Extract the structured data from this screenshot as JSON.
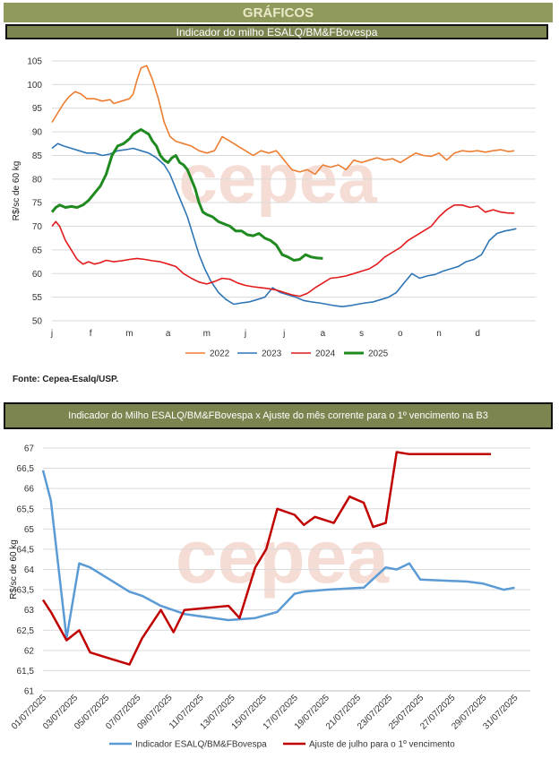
{
  "header": {
    "section_title": "GRÁFICOS"
  },
  "chart1_header": "Indicador do milho ESALQ/BM&FBovespa",
  "chart2_header": "Indicador do Milho ESALQ/BM&FBovespa x Ajuste do mês corrente para o 1º vencimento na B3",
  "source": "Fonte: Cepea-Esalq/USP.",
  "watermark": "cepea",
  "chart_data": [
    {
      "type": "line",
      "title": "Indicador do milho ESALQ/BM&FBovespa",
      "ylabel": "R$/sc de 60 kg",
      "xlabel": "",
      "ylim": [
        50,
        105
      ],
      "yticks": [
        50,
        55,
        60,
        65,
        70,
        75,
        80,
        85,
        90,
        95,
        100,
        105
      ],
      "x_tick_labels": [
        "j",
        "f",
        "m",
        "a",
        "m",
        "j",
        "j",
        "a",
        "s",
        "o",
        "n",
        "d"
      ],
      "x_unit": "month index (0 = Jan 1)",
      "grid": true,
      "legend_position": "bottom",
      "series": [
        {
          "name": "2022",
          "color": "#ed7d31",
          "width": 1.6,
          "x": [
            0,
            0.15,
            0.3,
            0.45,
            0.6,
            0.75,
            0.9,
            1.1,
            1.3,
            1.5,
            1.6,
            1.8,
            2.0,
            2.1,
            2.2,
            2.3,
            2.45,
            2.6,
            2.75,
            2.9,
            3.05,
            3.2,
            3.4,
            3.6,
            3.8,
            4.0,
            4.2,
            4.4,
            4.6,
            4.8,
            5.0,
            5.2,
            5.4,
            5.6,
            5.8,
            6.0,
            6.2,
            6.4,
            6.6,
            6.8,
            7.0,
            7.2,
            7.4,
            7.6,
            7.8,
            8.0,
            8.2,
            8.4,
            8.6,
            8.8,
            9.0,
            9.2,
            9.4,
            9.6,
            9.8,
            10.0,
            10.2,
            10.4,
            10.6,
            10.8,
            11.0,
            11.2,
            11.4,
            11.6,
            11.8,
            11.95
          ],
          "y": [
            92,
            94,
            96,
            97.5,
            98.5,
            98,
            97,
            97,
            96.5,
            96.8,
            96,
            96.5,
            97,
            98,
            101,
            103.5,
            104,
            101,
            97,
            92,
            89,
            88,
            87.5,
            87,
            86,
            85.5,
            86,
            89,
            88,
            87,
            86,
            85,
            86,
            85.5,
            86,
            84,
            82,
            81.5,
            82,
            81,
            83,
            82.5,
            83,
            82,
            84,
            83.5,
            84,
            84.5,
            84,
            84.3,
            83.5,
            84.5,
            85.5,
            85,
            84.8,
            85.5,
            84,
            85.5,
            86,
            85.8,
            86,
            85.7,
            86,
            86.2,
            85.8,
            86
          ]
        },
        {
          "name": "2023",
          "color": "#2e75b6",
          "width": 1.6,
          "x": [
            0,
            0.15,
            0.3,
            0.5,
            0.7,
            0.9,
            1.1,
            1.3,
            1.5,
            1.7,
            1.9,
            2.1,
            2.3,
            2.5,
            2.7,
            2.9,
            3.05,
            3.2,
            3.35,
            3.5,
            3.65,
            3.8,
            3.95,
            4.1,
            4.3,
            4.5,
            4.7,
            4.9,
            5.1,
            5.3,
            5.5,
            5.7,
            5.9,
            6.1,
            6.3,
            6.5,
            6.7,
            6.9,
            7.1,
            7.3,
            7.5,
            7.7,
            7.9,
            8.1,
            8.3,
            8.5,
            8.7,
            8.9,
            9.1,
            9.3,
            9.5,
            9.7,
            9.9,
            10.1,
            10.3,
            10.5,
            10.7,
            10.9,
            11.1,
            11.3,
            11.5,
            11.7,
            11.9,
            12.0
          ],
          "y": [
            86.5,
            87.5,
            87,
            86.5,
            86,
            85.5,
            85.5,
            85,
            85.3,
            86,
            86.2,
            86.5,
            86,
            85.5,
            84.5,
            83,
            81,
            78,
            75,
            72,
            68,
            64,
            61,
            58.5,
            56,
            54.5,
            53.5,
            53.8,
            54,
            54.5,
            55,
            57,
            56,
            55.5,
            55,
            54.3,
            54,
            53.8,
            53.5,
            53.2,
            53,
            53.2,
            53.5,
            53.8,
            54,
            54.5,
            55,
            56,
            58,
            60,
            59,
            59.5,
            59.8,
            60.5,
            61,
            61.5,
            62.5,
            63,
            64,
            67,
            68.5,
            69,
            69.3,
            69.5
          ]
        },
        {
          "name": "2024",
          "color": "#e31a1c",
          "width": 1.6,
          "x": [
            0,
            0.1,
            0.2,
            0.35,
            0.5,
            0.65,
            0.8,
            0.95,
            1.1,
            1.25,
            1.4,
            1.6,
            1.8,
            2.0,
            2.2,
            2.4,
            2.6,
            2.8,
            3.0,
            3.2,
            3.4,
            3.6,
            3.8,
            4.0,
            4.2,
            4.4,
            4.6,
            4.8,
            5.0,
            5.2,
            5.4,
            5.6,
            5.8,
            6.0,
            6.2,
            6.4,
            6.6,
            6.8,
            7.0,
            7.2,
            7.4,
            7.6,
            7.8,
            8.0,
            8.2,
            8.4,
            8.6,
            8.8,
            9.0,
            9.2,
            9.4,
            9.6,
            9.8,
            10.0,
            10.2,
            10.4,
            10.6,
            10.8,
            11.0,
            11.2,
            11.4,
            11.6,
            11.8,
            11.95
          ],
          "y": [
            70,
            71,
            70,
            67,
            65,
            63,
            62,
            62.5,
            62,
            62.3,
            62.8,
            62.5,
            62.7,
            63,
            63.2,
            63,
            62.7,
            62.5,
            62,
            61.5,
            60,
            59,
            58.2,
            57.8,
            58.3,
            59,
            58.8,
            58,
            57.5,
            57.2,
            57,
            56.8,
            56.5,
            56,
            55.5,
            55.2,
            55.8,
            57,
            58,
            59,
            59.2,
            59.5,
            60,
            60.5,
            61,
            62,
            63.5,
            64.5,
            65.5,
            67,
            68,
            69,
            70,
            72,
            73.5,
            74.5,
            74.5,
            74,
            74.3,
            73,
            73.5,
            73,
            72.8,
            72.8
          ]
        },
        {
          "name": "2025",
          "color": "#1f8a1f",
          "width": 3,
          "x": [
            0,
            0.1,
            0.2,
            0.35,
            0.5,
            0.65,
            0.8,
            0.95,
            1.1,
            1.25,
            1.4,
            1.55,
            1.7,
            1.85,
            2.0,
            2.1,
            2.2,
            2.3,
            2.4,
            2.5,
            2.6,
            2.7,
            2.8,
            2.9,
            3.0,
            3.1,
            3.2,
            3.3,
            3.4,
            3.5,
            3.6,
            3.7,
            3.8,
            3.9,
            4.0,
            4.15,
            4.3,
            4.45,
            4.6,
            4.75,
            4.9,
            5.05,
            5.2,
            5.35,
            5.5,
            5.65,
            5.8,
            5.95,
            6.1,
            6.25,
            6.4,
            6.55,
            6.7,
            6.85,
            7.0
          ],
          "y": [
            73,
            74,
            74.5,
            74,
            74.2,
            74,
            74.5,
            75.5,
            77,
            78.5,
            81,
            85,
            87,
            87.5,
            88.5,
            89.5,
            90,
            90.5,
            90,
            89.5,
            88,
            87,
            85,
            84,
            83.5,
            84.5,
            85,
            83.5,
            83,
            82,
            80,
            78,
            75,
            73,
            72.5,
            72,
            71,
            70.5,
            70,
            69,
            69,
            68.2,
            68,
            68.5,
            67.5,
            67,
            66,
            64,
            63.5,
            62.8,
            63,
            64,
            63.5,
            63.3,
            63.2
          ]
        }
      ]
    },
    {
      "type": "line",
      "title": "Indicador do Milho ESALQ/BM&FBovespa x Ajuste do mês corrente para o 1º vencimento na B3",
      "ylabel": "R$/sc de 60 kg",
      "xlabel": "",
      "ylim": [
        61,
        67
      ],
      "yticks": [
        61,
        61.5,
        62,
        62.5,
        63,
        63.5,
        64,
        64.5,
        65,
        65.5,
        66,
        66.5,
        67
      ],
      "ytick_labels": [
        "61",
        "61,5",
        "62",
        "62,5",
        "63",
        "63,5",
        "64",
        "64,5",
        "65",
        "65,5",
        "66",
        "66,5",
        "67"
      ],
      "x_tick_labels": [
        "01/07/2025",
        "03/07/2025",
        "05/07/2025",
        "07/07/2025",
        "09/07/2025",
        "11/07/2025",
        "13/07/2025",
        "15/07/2025",
        "17/07/2025",
        "19/07/2025",
        "21/07/2025",
        "23/07/2025",
        "25/07/2025",
        "27/07/2025",
        "29/07/2025",
        "31/07/2025"
      ],
      "x_unit": "day of July 2025",
      "grid": true,
      "legend_position": "bottom",
      "series": [
        {
          "name": "Indicador ESALQ/BM&FBovespa",
          "color": "#5b9bd5",
          "width": 2.5,
          "x": [
            1,
            1.5,
            2.5,
            3.3,
            4.0,
            6.5,
            7.3,
            8.5,
            10,
            12.8,
            14.5,
            15.9,
            17.0,
            17.6,
            19,
            21.4,
            22.8,
            23.5,
            24.3,
            25.0,
            28.0,
            29.0,
            30.3,
            31.0
          ],
          "y": [
            66.45,
            65.7,
            62.3,
            64.15,
            64.05,
            63.45,
            63.35,
            63.1,
            62.9,
            62.75,
            62.8,
            62.95,
            63.4,
            63.45,
            63.5,
            63.55,
            64.05,
            64.0,
            64.15,
            63.75,
            63.7,
            63.65,
            63.5,
            63.55
          ]
        },
        {
          "name": "Ajuste de julho para o 1º vencimento",
          "color": "#c00000",
          "width": 2.5,
          "x": [
            1,
            1.5,
            2.5,
            3.3,
            4.0,
            6.5,
            7.3,
            8.5,
            9.3,
            10.0,
            12.8,
            13.5,
            14.5,
            15.2,
            15.9,
            17.0,
            17.6,
            18.3,
            19.5,
            20.5,
            21.4,
            22.0,
            22.8,
            23.5,
            24.3,
            25.0,
            25.7,
            27.5,
            28.0,
            28.8,
            29.5
          ],
          "y": [
            63.25,
            62.95,
            62.25,
            62.5,
            61.95,
            61.65,
            62.3,
            63.0,
            62.45,
            63.0,
            63.1,
            62.8,
            64.05,
            64.5,
            65.5,
            65.35,
            65.1,
            65.3,
            65.15,
            65.8,
            65.65,
            65.05,
            65.15,
            66.9,
            66.85,
            66.85,
            66.85,
            66.85,
            66.85,
            66.85,
            66.85
          ]
        }
      ]
    }
  ]
}
